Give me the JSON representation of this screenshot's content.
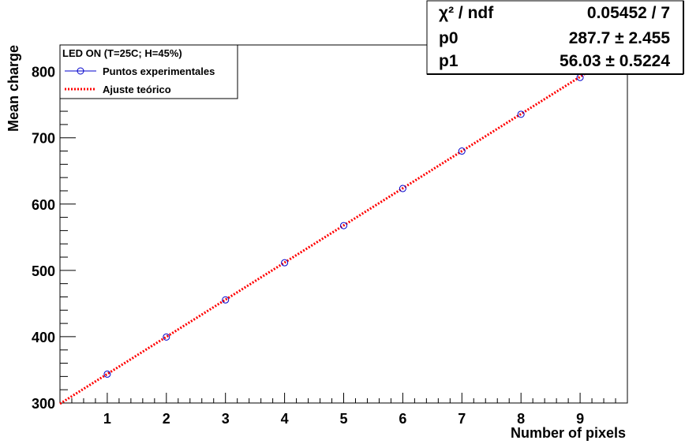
{
  "chart_data": {
    "type": "scatter",
    "xlabel": "Number of pixels",
    "ylabel": "Mean charge",
    "xlim": [
      0.2,
      9.8
    ],
    "ylim": [
      300,
      840
    ],
    "x_ticks": [
      1,
      2,
      3,
      4,
      5,
      6,
      7,
      8,
      9
    ],
    "y_ticks": [
      300,
      400,
      500,
      600,
      700,
      800
    ],
    "grid": false,
    "legend_position": "top-left",
    "legend": {
      "title": "LED ON (T=25C; H=45%)",
      "entries": [
        {
          "label": "Puntos experimentales",
          "color": "#0000cc",
          "style": "line-marker"
        },
        {
          "label": "Ajuste teórico",
          "color": "#ff0000",
          "style": "dotted"
        }
      ]
    },
    "series": [
      {
        "name": "Puntos experimentales",
        "color": "#0000cc",
        "x": [
          1,
          2,
          3,
          4,
          5,
          6,
          7,
          8,
          9
        ],
        "y": [
          343.5,
          399.5,
          455.5,
          511.5,
          567.5,
          623.5,
          680,
          735.5,
          791
        ]
      },
      {
        "name": "Ajuste teórico",
        "color": "#ff0000",
        "fit": {
          "p0": 287.7,
          "p1": 56.03
        },
        "x_range": [
          0.2,
          9.7
        ]
      }
    ],
    "stats_box": {
      "position": "top-right",
      "rows": [
        {
          "label": "χ² / ndf",
          "value": "0.05452 / 7"
        },
        {
          "label": "p0",
          "value": "287.7 ± 2.455"
        },
        {
          "label": "p1",
          "value": "56.03 ± 0.5224"
        }
      ]
    }
  }
}
